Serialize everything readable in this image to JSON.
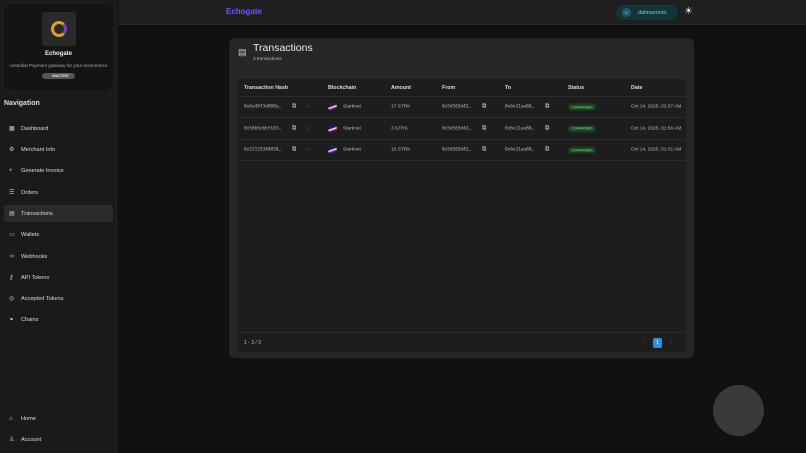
{
  "brand": {
    "name": "Echogate",
    "description": "custodial Payment gateway for your ecommerce",
    "status": "INACTIVE"
  },
  "nav": {
    "heading": "Navigation",
    "items": [
      {
        "label": "Dashboard",
        "icon": "grid-icon"
      },
      {
        "label": "Merchant Info",
        "icon": "gear-icon"
      },
      {
        "label": "Generate Invoice",
        "icon": "plus-icon"
      },
      {
        "label": "Orders",
        "icon": "list-icon"
      },
      {
        "label": "Transactions",
        "icon": "receipt-icon",
        "active": true
      },
      {
        "label": "Wallets",
        "icon": "wallet-icon"
      },
      {
        "label": "Webhooks",
        "icon": "webhook-icon"
      },
      {
        "label": "API Tokens",
        "icon": "key-icon"
      },
      {
        "label": "Accepted Tokens",
        "icon": "coins-icon"
      },
      {
        "label": "Chains",
        "icon": "link-icon"
      }
    ],
    "bottom": [
      {
        "label": "Home",
        "icon": "home-icon"
      },
      {
        "label": "Account",
        "icon": "user-icon"
      }
    ]
  },
  "header": {
    "app_name": "Echogate",
    "user_initial": "B",
    "username": "dalmasonto"
  },
  "page": {
    "title": "Transactions",
    "subtitle": "3 transactions"
  },
  "table": {
    "columns": [
      "Transaction Hash",
      "Blockchain",
      "Amount",
      "From",
      "To",
      "Status",
      "Date"
    ],
    "rows": [
      {
        "hash": "0x6e49f3d908e…",
        "chain": "Starknet",
        "amount": "17 STRK",
        "from": "0x5d583d42…",
        "to": "0x6e11aa88…",
        "status": "CONFIRMED",
        "date": "Oct 14, 2025, 02:07 AM"
      },
      {
        "hash": "0x58b6c6bf107…",
        "chain": "Starknet",
        "amount": "3 STRK",
        "from": "0x5d583d42…",
        "to": "0x6e11aa88…",
        "status": "CONFIRMED",
        "date": "Oct 14, 2025, 01:56 AM"
      },
      {
        "hash": "0x23125348858…",
        "chain": "Starknet",
        "amount": "10 STRK",
        "from": "0x5d583d42…",
        "to": "0x6e11aa88…",
        "status": "CONFIRMED",
        "date": "Oct 14, 2025, 01:31 AM"
      }
    ]
  },
  "pagination": {
    "range": "1 - 3 / 3",
    "current": "1",
    "prev": "‹",
    "next": "›"
  },
  "colors": {
    "accent": "#7c4dff",
    "confirmed": "#5fbf6a",
    "page_active": "#2d8fe0"
  }
}
